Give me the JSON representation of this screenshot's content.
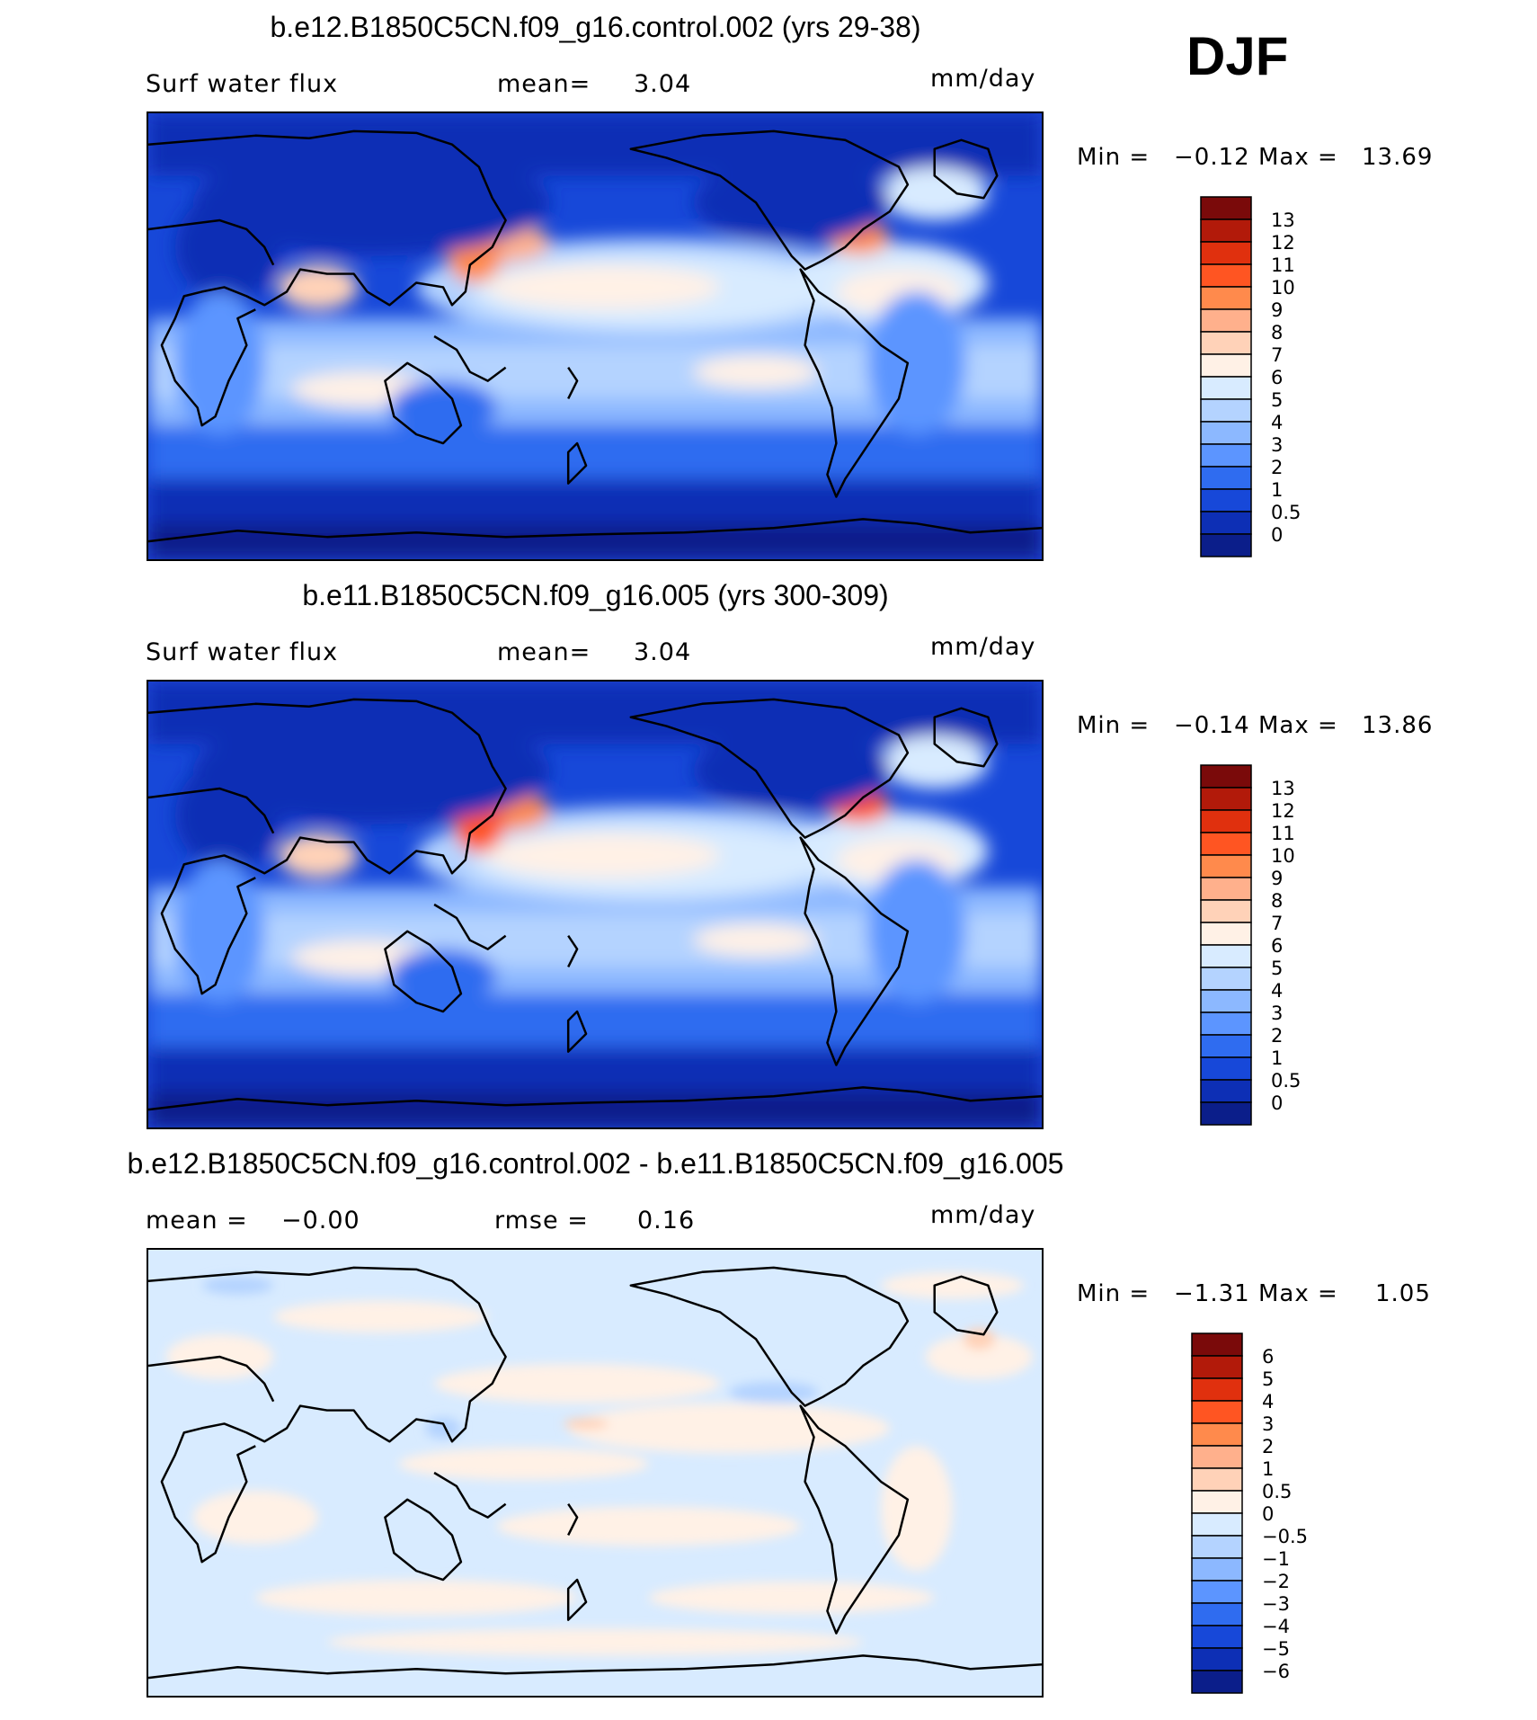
{
  "season": "DJF",
  "chart_data": [
    {
      "type": "heatmap",
      "title": "b.e12.B1850C5CN.f09_g16.control.002 (yrs 29-38)",
      "left_label": "Surf water flux",
      "mean_label": "mean=",
      "mean_value": "3.04",
      "units": "mm/day",
      "min_label": "Min =",
      "min_value": "−0.12",
      "max_label": "Max =",
      "max_value": "13.69",
      "colorbar_levels": [
        "13",
        "12",
        "11",
        "10",
        "9",
        "8",
        "7",
        "6",
        "5",
        "4",
        "3",
        "2",
        "1",
        "0.5",
        "0"
      ],
      "colors": [
        "#7a0a0a",
        "#b21a0a",
        "#e0300e",
        "#ff5522",
        "#ff8a4c",
        "#ffb08c",
        "#ffd2b8",
        "#fff1e6",
        "#d8ebff",
        "#b4d3ff",
        "#8cb8ff",
        "#5c95ff",
        "#2f6cf0",
        "#1748d9",
        "#0d2fb5",
        "#0b1e8a"
      ]
    },
    {
      "type": "heatmap",
      "title": "b.e11.B1850C5CN.f09_g16.005 (yrs 300-309)",
      "left_label": "Surf water flux",
      "mean_label": "mean=",
      "mean_value": "3.04",
      "units": "mm/day",
      "min_label": "Min =",
      "min_value": "−0.14",
      "max_label": "Max =",
      "max_value": "13.86",
      "colorbar_levels": [
        "13",
        "12",
        "11",
        "10",
        "9",
        "8",
        "7",
        "6",
        "5",
        "4",
        "3",
        "2",
        "1",
        "0.5",
        "0"
      ],
      "colors": [
        "#7a0a0a",
        "#b21a0a",
        "#e0300e",
        "#ff5522",
        "#ff8a4c",
        "#ffb08c",
        "#ffd2b8",
        "#fff1e6",
        "#d8ebff",
        "#b4d3ff",
        "#8cb8ff",
        "#5c95ff",
        "#2f6cf0",
        "#1748d9",
        "#0d2fb5",
        "#0b1e8a"
      ]
    },
    {
      "type": "heatmap",
      "title": "b.e12.B1850C5CN.f09_g16.control.002 - b.e11.B1850C5CN.f09_g16.005",
      "mean_label": "mean =",
      "mean_value": "−0.00",
      "rmse_label": "rmse =",
      "rmse_value": "0.16",
      "units": "mm/day",
      "min_label": "Min =",
      "min_value": "−1.31",
      "max_label": "Max =",
      "max_value": "1.05",
      "colorbar_levels": [
        "6",
        "5",
        "4",
        "3",
        "2",
        "1",
        "0.5",
        "0",
        "−0.5",
        "−1",
        "−2",
        "−3",
        "−4",
        "−5",
        "−6"
      ],
      "colors": [
        "#7a0a0a",
        "#b21a0a",
        "#e0300e",
        "#ff5522",
        "#ff8a4c",
        "#ffb08c",
        "#ffd2b8",
        "#fff1e6",
        "#d8ebff",
        "#b4d3ff",
        "#8cb8ff",
        "#5c95ff",
        "#2f6cf0",
        "#1748d9",
        "#0d2fb5",
        "#0b1e8a"
      ]
    }
  ]
}
